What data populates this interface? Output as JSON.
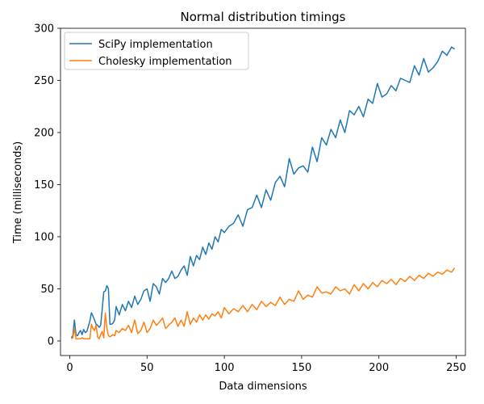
{
  "chart_data": {
    "type": "line",
    "title": "Normal distribution timings",
    "xlabel": "Data dimensions",
    "ylabel": "Time (milliseconds)",
    "xlim": [
      -6,
      256
    ],
    "ylim": [
      -14,
      300
    ],
    "xticks": [
      0,
      50,
      100,
      150,
      200,
      250
    ],
    "yticks": [
      0,
      50,
      100,
      150,
      200,
      250,
      300
    ],
    "grid": false,
    "legend_position": "top-left",
    "series": [
      {
        "name": "SciPy implementation",
        "color": "#1f77b4",
        "x": [
          1,
          2,
          3,
          4,
          5,
          6,
          7,
          8,
          9,
          10,
          11,
          12,
          13,
          14,
          15,
          16,
          17,
          18,
          19,
          20,
          21,
          22,
          23,
          24,
          25,
          26,
          27,
          28,
          29,
          30,
          32,
          34,
          36,
          38,
          40,
          42,
          44,
          46,
          48,
          50,
          52,
          54,
          56,
          58,
          60,
          62,
          64,
          66,
          68,
          70,
          72,
          74,
          76,
          78,
          80,
          82,
          84,
          86,
          88,
          90,
          92,
          94,
          96,
          98,
          100,
          103,
          106,
          109,
          112,
          115,
          118,
          121,
          124,
          127,
          130,
          133,
          136,
          139,
          142,
          145,
          148,
          151,
          154,
          157,
          160,
          163,
          166,
          169,
          172,
          175,
          178,
          181,
          184,
          187,
          190,
          193,
          196,
          199,
          202,
          205,
          208,
          211,
          214,
          217,
          220,
          223,
          226,
          229,
          232,
          235,
          238,
          241,
          244,
          247,
          249
        ],
        "values": [
          3,
          5,
          20,
          6,
          5,
          8,
          10,
          6,
          11,
          8,
          9,
          14,
          19,
          27,
          24,
          20,
          16,
          15,
          13,
          15,
          30,
          47,
          48,
          53,
          50,
          16,
          16,
          17,
          20,
          33,
          25,
          35,
          29,
          38,
          32,
          43,
          35,
          40,
          48,
          50,
          38,
          55,
          52,
          45,
          60,
          56,
          60,
          67,
          60,
          62,
          68,
          72,
          63,
          81,
          72,
          82,
          78,
          90,
          83,
          94,
          88,
          100,
          95,
          107,
          104,
          110,
          113,
          121,
          110,
          126,
          128,
          140,
          128,
          145,
          135,
          152,
          158,
          148,
          175,
          160,
          166,
          168,
          162,
          186,
          172,
          195,
          188,
          203,
          195,
          212,
          200,
          221,
          217,
          225,
          215,
          232,
          228,
          247,
          234,
          237,
          245,
          240,
          252,
          250,
          248,
          264,
          255,
          271,
          258,
          262,
          268,
          278,
          274,
          282,
          280
        ]
      },
      {
        "name": "Cholesky implementation",
        "color": "#ff7f0e",
        "x": [
          1,
          2,
          3,
          4,
          5,
          6,
          7,
          8,
          9,
          10,
          11,
          12,
          13,
          14,
          15,
          16,
          17,
          18,
          19,
          20,
          21,
          22,
          23,
          24,
          25,
          26,
          27,
          28,
          29,
          30,
          32,
          34,
          36,
          38,
          40,
          42,
          44,
          46,
          48,
          50,
          52,
          54,
          56,
          58,
          60,
          62,
          64,
          66,
          68,
          70,
          72,
          74,
          76,
          78,
          80,
          82,
          84,
          86,
          88,
          90,
          92,
          94,
          96,
          98,
          100,
          103,
          106,
          109,
          112,
          115,
          118,
          121,
          124,
          127,
          130,
          133,
          136,
          139,
          142,
          145,
          148,
          151,
          154,
          157,
          160,
          163,
          166,
          169,
          172,
          175,
          178,
          181,
          184,
          187,
          190,
          193,
          196,
          199,
          202,
          205,
          208,
          211,
          214,
          217,
          220,
          223,
          226,
          229,
          232,
          235,
          238,
          241,
          244,
          247,
          249
        ],
        "values": [
          2,
          3,
          12,
          2,
          2,
          2,
          2,
          3,
          2,
          2,
          2,
          2,
          2,
          16,
          12,
          10,
          15,
          4,
          2,
          6,
          9,
          3,
          27,
          12,
          5,
          4,
          5,
          6,
          5,
          10,
          8,
          12,
          10,
          15,
          8,
          20,
          7,
          10,
          18,
          8,
          12,
          20,
          15,
          18,
          22,
          12,
          15,
          18,
          22,
          14,
          20,
          14,
          28,
          16,
          22,
          18,
          25,
          20,
          25,
          21,
          26,
          24,
          28,
          22,
          32,
          26,
          31,
          28,
          34,
          28,
          35,
          30,
          38,
          33,
          37,
          34,
          42,
          35,
          40,
          38,
          48,
          40,
          44,
          42,
          52,
          46,
          47,
          45,
          52,
          48,
          50,
          45,
          54,
          48,
          55,
          50,
          56,
          52,
          58,
          55,
          59,
          54,
          60,
          57,
          62,
          58,
          63,
          60,
          65,
          62,
          66,
          64,
          68,
          66,
          70
        ]
      }
    ]
  }
}
